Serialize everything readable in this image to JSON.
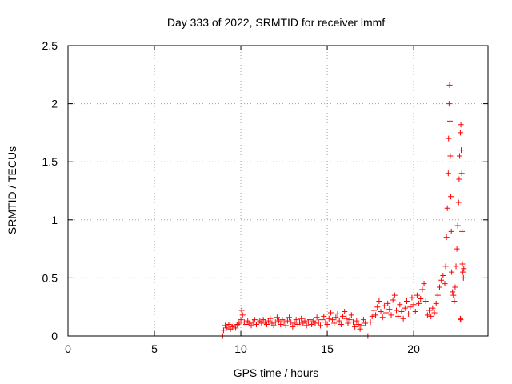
{
  "chart_data": {
    "type": "scatter",
    "title": "Day 333 of 2022, SRMTID for receiver lmmf",
    "xlabel": "GPS time / hours",
    "ylabel": "SRMTID / TECUs",
    "xlim": [
      0,
      24.3
    ],
    "ylim": [
      0,
      2.5
    ],
    "xticks": [
      0,
      5,
      10,
      15,
      20
    ],
    "xtick_labels": [
      "0",
      "5",
      "10",
      "15",
      "20"
    ],
    "yticks": [
      0,
      0.5,
      1,
      1.5,
      2,
      2.5
    ],
    "ytick_labels": [
      "0",
      "0.5",
      "1",
      "1.5",
      "2",
      "2.5"
    ],
    "grid": true,
    "marker": "+",
    "series": [
      {
        "color": "#ff0000",
        "points": [
          [
            8.95,
            0.0
          ],
          [
            9.0,
            0.05
          ],
          [
            9.1,
            0.09
          ],
          [
            9.2,
            0.07
          ],
          [
            9.3,
            0.1
          ],
          [
            9.4,
            0.06
          ],
          [
            9.5,
            0.08
          ],
          [
            9.6,
            0.09
          ],
          [
            9.7,
            0.07
          ],
          [
            9.8,
            0.1
          ],
          [
            9.9,
            0.11
          ],
          [
            10.0,
            0.14
          ],
          [
            10.05,
            0.22
          ],
          [
            10.1,
            0.18
          ],
          [
            10.2,
            0.12
          ],
          [
            10.3,
            0.1
          ],
          [
            10.4,
            0.13
          ],
          [
            10.5,
            0.11
          ],
          [
            10.6,
            0.09
          ],
          [
            10.7,
            0.12
          ],
          [
            10.8,
            0.14
          ],
          [
            10.9,
            0.1
          ],
          [
            11.0,
            0.12
          ],
          [
            11.1,
            0.13
          ],
          [
            11.2,
            0.11
          ],
          [
            11.3,
            0.14
          ],
          [
            11.4,
            0.12
          ],
          [
            11.5,
            0.1
          ],
          [
            11.6,
            0.13
          ],
          [
            11.7,
            0.15
          ],
          [
            11.8,
            0.11
          ],
          [
            11.9,
            0.09
          ],
          [
            12.0,
            0.12
          ],
          [
            12.1,
            0.16
          ],
          [
            12.2,
            0.13
          ],
          [
            12.3,
            0.1
          ],
          [
            12.4,
            0.14
          ],
          [
            12.5,
            0.12
          ],
          [
            12.6,
            0.09
          ],
          [
            12.7,
            0.13
          ],
          [
            12.8,
            0.16
          ],
          [
            12.9,
            0.12
          ],
          [
            13.0,
            0.08
          ],
          [
            13.1,
            0.11
          ],
          [
            13.2,
            0.14
          ],
          [
            13.3,
            0.1
          ],
          [
            13.4,
            0.12
          ],
          [
            13.5,
            0.15
          ],
          [
            13.6,
            0.11
          ],
          [
            13.7,
            0.13
          ],
          [
            13.8,
            0.09
          ],
          [
            13.9,
            0.12
          ],
          [
            14.0,
            0.14
          ],
          [
            14.1,
            0.1
          ],
          [
            14.2,
            0.13
          ],
          [
            14.3,
            0.11
          ],
          [
            14.4,
            0.16
          ],
          [
            14.5,
            0.12
          ],
          [
            14.6,
            0.09
          ],
          [
            14.7,
            0.14
          ],
          [
            14.8,
            0.17
          ],
          [
            14.9,
            0.12
          ],
          [
            15.0,
            0.1
          ],
          [
            15.1,
            0.15
          ],
          [
            15.2,
            0.2
          ],
          [
            15.3,
            0.14
          ],
          [
            15.4,
            0.11
          ],
          [
            15.5,
            0.16
          ],
          [
            15.6,
            0.19
          ],
          [
            15.7,
            0.13
          ],
          [
            15.8,
            0.1
          ],
          [
            15.9,
            0.17
          ],
          [
            16.0,
            0.21
          ],
          [
            16.1,
            0.15
          ],
          [
            16.2,
            0.11
          ],
          [
            16.3,
            0.14
          ],
          [
            16.4,
            0.18
          ],
          [
            16.5,
            0.12
          ],
          [
            16.6,
            0.08
          ],
          [
            16.7,
            0.13
          ],
          [
            16.8,
            0.1
          ],
          [
            16.9,
            0.06
          ],
          [
            17.0,
            0.09
          ],
          [
            17.1,
            0.14
          ],
          [
            17.2,
            0.11
          ],
          [
            17.35,
            0.0
          ],
          [
            17.5,
            0.12
          ],
          [
            17.6,
            0.17
          ],
          [
            17.7,
            0.22
          ],
          [
            17.8,
            0.18
          ],
          [
            17.9,
            0.25
          ],
          [
            18.0,
            0.3
          ],
          [
            18.1,
            0.21
          ],
          [
            18.2,
            0.16
          ],
          [
            18.3,
            0.26
          ],
          [
            18.4,
            0.2
          ],
          [
            18.5,
            0.28
          ],
          [
            18.6,
            0.23
          ],
          [
            18.7,
            0.18
          ],
          [
            18.8,
            0.31
          ],
          [
            18.9,
            0.35
          ],
          [
            19.0,
            0.22
          ],
          [
            19.1,
            0.17
          ],
          [
            19.2,
            0.27
          ],
          [
            19.3,
            0.21
          ],
          [
            19.4,
            0.15
          ],
          [
            19.5,
            0.24
          ],
          [
            19.6,
            0.3
          ],
          [
            19.7,
            0.19
          ],
          [
            19.8,
            0.25
          ],
          [
            19.9,
            0.33
          ],
          [
            20.0,
            0.27
          ],
          [
            20.1,
            0.21
          ],
          [
            20.2,
            0.35
          ],
          [
            20.3,
            0.28
          ],
          [
            20.4,
            0.32
          ],
          [
            20.5,
            0.4
          ],
          [
            20.6,
            0.45
          ],
          [
            20.7,
            0.3
          ],
          [
            20.8,
            0.18
          ],
          [
            20.9,
            0.22
          ],
          [
            21.0,
            0.17
          ],
          [
            21.1,
            0.24
          ],
          [
            21.2,
            0.2
          ],
          [
            21.3,
            0.28
          ],
          [
            21.4,
            0.35
          ],
          [
            21.5,
            0.42
          ],
          [
            21.6,
            0.48
          ],
          [
            21.7,
            0.52
          ],
          [
            21.8,
            0.45
          ],
          [
            21.85,
            0.6
          ],
          [
            21.9,
            0.85
          ],
          [
            21.95,
            1.1
          ],
          [
            22.0,
            1.4
          ],
          [
            22.02,
            1.7
          ],
          [
            22.05,
            2.0
          ],
          [
            22.08,
            2.16
          ],
          [
            22.1,
            1.85
          ],
          [
            22.12,
            1.55
          ],
          [
            22.15,
            1.2
          ],
          [
            22.18,
            0.9
          ],
          [
            22.2,
            0.55
          ],
          [
            22.25,
            0.38
          ],
          [
            22.3,
            0.35
          ],
          [
            22.35,
            0.3
          ],
          [
            22.4,
            0.42
          ],
          [
            22.45,
            0.6
          ],
          [
            22.5,
            0.75
          ],
          [
            22.55,
            0.95
          ],
          [
            22.6,
            1.15
          ],
          [
            22.63,
            1.35
          ],
          [
            22.66,
            1.55
          ],
          [
            22.7,
            1.75
          ],
          [
            22.73,
            1.82
          ],
          [
            22.75,
            1.6
          ],
          [
            22.78,
            1.4
          ],
          [
            22.8,
            0.9
          ],
          [
            22.82,
            0.62
          ],
          [
            22.85,
            0.55
          ],
          [
            22.88,
            0.5
          ],
          [
            22.9,
            0.58
          ],
          [
            22.7,
            0.15
          ],
          [
            22.72,
            0.14
          ]
        ]
      }
    ]
  }
}
